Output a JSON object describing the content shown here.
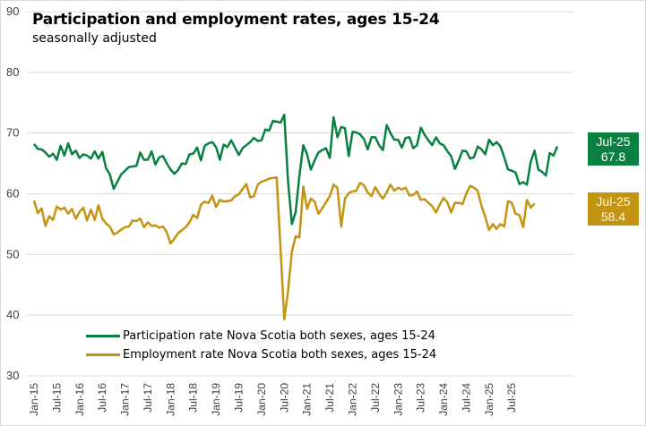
{
  "chart_data": {
    "type": "line",
    "title": "Participation and employment rates, ages 15-24",
    "subtitle": "seasonally adjusted",
    "xlabel": "",
    "ylabel": "",
    "ylim": [
      30,
      90
    ],
    "yticks": [
      30,
      40,
      50,
      60,
      70,
      80,
      90
    ],
    "grid": true,
    "legend_position": "bottom-left",
    "x_tick_labels": [
      "Jan-15",
      "Jul-15",
      "Jan-16",
      "Jul-16",
      "Jan-17",
      "Jul-17",
      "Jan-18",
      "Jul-18",
      "Jan-19",
      "Jul-19",
      "Jan-20",
      "Jul-20",
      "Jan-21",
      "Jul-21",
      "Jan-22",
      "Jul-22",
      "Jan-23",
      "Jul-23",
      "Jan-24",
      "Jul-24",
      "Jan-25",
      "Jul-25"
    ],
    "x_start": "Jan-15",
    "x_end": "Jul-25",
    "series": [
      {
        "name": "Participation rate Nova Scotia both sexes, ages 15-24",
        "color": "#0a8040",
        "values": [
          68.2,
          67.4,
          67.3,
          66.8,
          66.1,
          66.6,
          65.6,
          67.9,
          66.3,
          68.3,
          66.5,
          67.1,
          65.9,
          66.5,
          66.3,
          65.8,
          67.0,
          65.8,
          66.9,
          64.2,
          63.2,
          60.8,
          62.0,
          63.2,
          63.8,
          64.4,
          64.5,
          64.6,
          66.8,
          65.6,
          65.6,
          67.0,
          64.8,
          66.0,
          66.2,
          65.0,
          64.0,
          63.3,
          63.9,
          65.0,
          64.9,
          66.5,
          66.6,
          67.6,
          65.5,
          67.9,
          68.3,
          68.5,
          67.7,
          65.6,
          68.1,
          67.7,
          68.8,
          67.6,
          66.4,
          67.5,
          68.0,
          68.5,
          69.2,
          68.7,
          68.8,
          70.6,
          70.4,
          72.0,
          71.9,
          71.7,
          73.0,
          62.0,
          55.0,
          57.0,
          63.0,
          68.0,
          66.5,
          64.0,
          65.5,
          66.8,
          67.2,
          67.5,
          65.9,
          72.6,
          69.3,
          71.0,
          70.8,
          66.2,
          70.2,
          70.1,
          69.8,
          69.0,
          67.3,
          69.3,
          69.3,
          68.0,
          67.2,
          71.3,
          70.0,
          68.9,
          68.9,
          67.6,
          69.2,
          69.3,
          67.5,
          68.0,
          70.9,
          69.7,
          68.8,
          68.0,
          69.3,
          68.3,
          68.0,
          67.0,
          66.2,
          64.1,
          65.5,
          67.1,
          67.0,
          65.8,
          66.0,
          67.8,
          67.3,
          66.5,
          68.9,
          68.0,
          68.5,
          67.8,
          66.0,
          64.0,
          63.8,
          63.5,
          61.6,
          61.9,
          61.5,
          65.3,
          67.1,
          64.0,
          63.6,
          63.0,
          66.7,
          66.3,
          67.8
        ]
      },
      {
        "name": "Employment rate Nova Scotia both sexes, ages 15-24",
        "color": "#c39312",
        "values": [
          58.9,
          56.8,
          57.6,
          54.7,
          56.3,
          55.7,
          57.9,
          57.4,
          57.7,
          56.7,
          57.5,
          55.9,
          57.0,
          57.7,
          55.6,
          57.4,
          55.7,
          58.1,
          55.9,
          55.1,
          54.6,
          53.3,
          53.6,
          54.1,
          54.5,
          54.6,
          55.6,
          55.5,
          55.9,
          54.5,
          55.3,
          54.7,
          54.8,
          54.4,
          54.6,
          53.7,
          51.8,
          52.6,
          53.5,
          54.0,
          54.5,
          55.3,
          56.5,
          56.0,
          58.2,
          58.7,
          58.5,
          59.7,
          57.8,
          59.0,
          58.7,
          58.8,
          58.9,
          59.6,
          59.9,
          60.8,
          61.6,
          59.4,
          59.6,
          61.5,
          62.0,
          62.2,
          62.5,
          62.6,
          62.7,
          51.0,
          39.3,
          44.0,
          50.5,
          53.0,
          52.8,
          61.2,
          57.5,
          59.2,
          58.7,
          56.7,
          57.6,
          58.6,
          59.6,
          61.5,
          61.0,
          54.6,
          59.2,
          60.1,
          60.4,
          60.5,
          61.8,
          61.4,
          60.2,
          59.6,
          61.1,
          60.0,
          59.2,
          60.2,
          61.5,
          60.5,
          61.0,
          60.7,
          61.0,
          59.7,
          59.8,
          60.4,
          59.0,
          59.1,
          58.5,
          58.0,
          56.9,
          58.2,
          59.3,
          58.6,
          56.9,
          58.5,
          58.5,
          58.3,
          60.0,
          61.3,
          61.0,
          60.5,
          58.0,
          56.2,
          54.0,
          55.0,
          54.2,
          55.0,
          54.6,
          58.8,
          58.5,
          56.7,
          56.5,
          54.5,
          59.0,
          57.7,
          58.4
        ]
      }
    ],
    "annotations": [
      {
        "series": "Participation rate Nova Scotia both sexes, ages 15-24",
        "label": "Jul-25",
        "value": "67.8",
        "color": "#0a8040"
      },
      {
        "series": "Employment rate Nova Scotia both sexes, ages 15-24",
        "label": "Jul-25",
        "value": "58.4",
        "color": "#c39312"
      }
    ]
  }
}
